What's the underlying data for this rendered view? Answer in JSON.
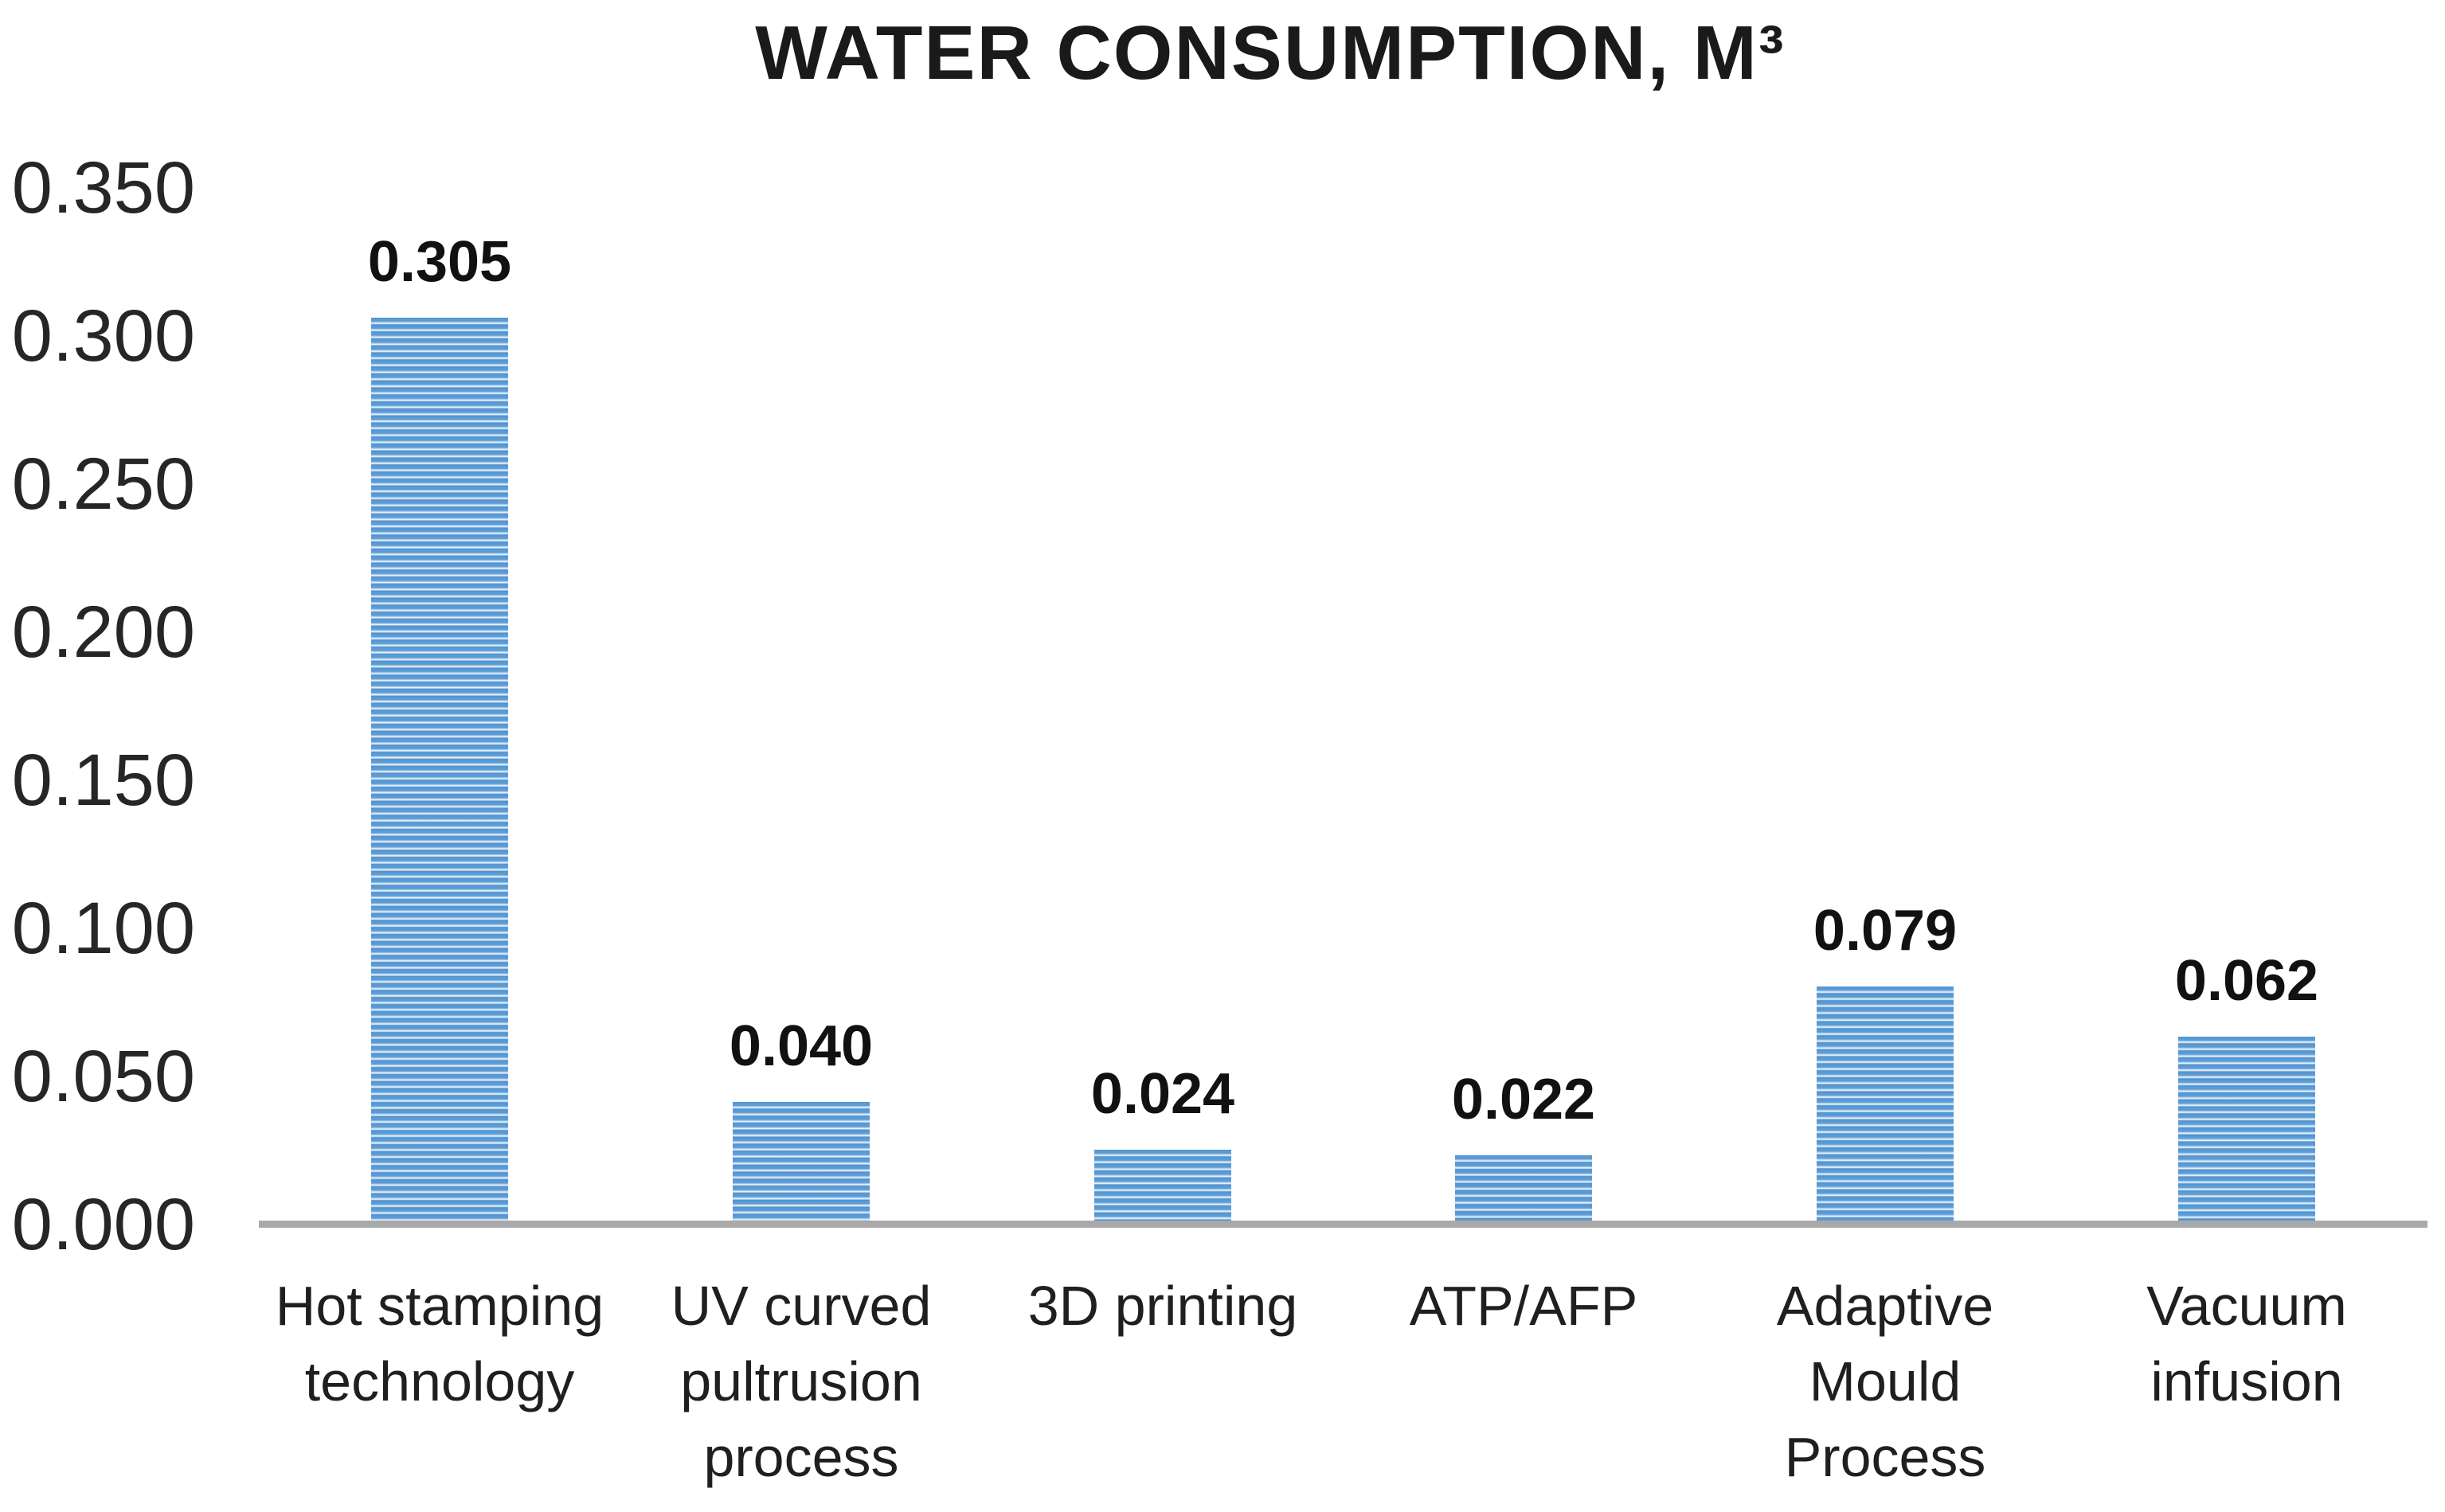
{
  "title": "WATER CONSUMPTION, M³",
  "chart_data": {
    "type": "bar",
    "title": "WATER CONSUMPTION, M³",
    "categories": [
      "Hot stamping technology",
      "UV curved pultrusion process",
      "3D printing",
      "ATP/AFP",
      "Adaptive Mould Process",
      "Vacuum infusion"
    ],
    "category_display_lines": [
      "Hot stamping\ntechnology",
      "UV curved\npultrusion\nprocess",
      "3D printing",
      "ATP/AFP",
      "Adaptive\nMould\nProcess",
      "Vacuum\ninfusion"
    ],
    "values": [
      0.305,
      0.04,
      0.024,
      0.022,
      0.079,
      0.062
    ],
    "data_labels": [
      "0.305",
      "0.040",
      "0.024",
      "0.022",
      "0.079",
      "0.062"
    ],
    "xlabel": "",
    "ylabel": "",
    "ylim": [
      0.0,
      0.35
    ],
    "ytick_step": 0.05,
    "ytick_labels": [
      "0.350",
      "0.300",
      "0.250",
      "0.200",
      "0.150",
      "0.100",
      "0.050",
      "0.000"
    ],
    "grid": false,
    "legend": false,
    "bar_pattern": "horizontal-stripes",
    "colors": {
      "bar_fill": "#5B9BD5",
      "bar_stripe": "#F6FAFE",
      "axis_line": "#A9A9A9",
      "title_text": "#1A1A1A",
      "label_text": "#262626"
    }
  }
}
